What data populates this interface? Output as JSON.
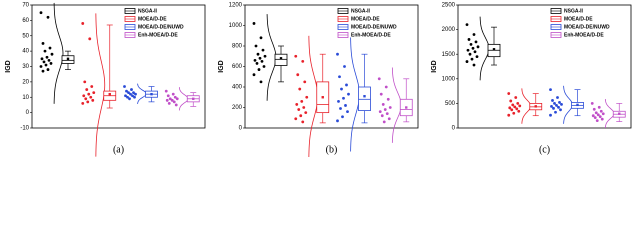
{
  "chart_data": [
    {
      "type": "box",
      "caption": "(a)",
      "ylabel": "IGD",
      "ylim": [
        -10,
        70
      ],
      "yticks": [
        -10,
        0,
        10,
        20,
        30,
        40,
        50,
        60,
        70
      ],
      "legend": "upper right",
      "series": [
        {
          "name": "NSGA-II",
          "color": "#000000",
          "box": {
            "whislo": 28,
            "q1": 32,
            "median": 34,
            "q3": 37,
            "whishi": 40,
            "mean": 35
          },
          "values": [
            65,
            62,
            45,
            42,
            40,
            38,
            36,
            35,
            34,
            33,
            32,
            31,
            30,
            28,
            27
          ]
        },
        {
          "name": "MOEA/D-DE",
          "color": "#e8212a",
          "box": {
            "whislo": 3,
            "q1": 8,
            "median": 11,
            "q3": 14,
            "whishi": 57,
            "mean": 12
          },
          "values": [
            58,
            48,
            20,
            17,
            15,
            13,
            12,
            11,
            10,
            9,
            8,
            7,
            6
          ]
        },
        {
          "name": "MOEA/D-DE/NUWD",
          "color": "#2a4bd7",
          "box": {
            "whislo": 7,
            "q1": 10,
            "median": 12,
            "q3": 14,
            "whishi": 17,
            "mean": 12
          },
          "values": [
            17,
            15,
            14,
            13,
            13,
            12,
            12,
            11,
            11,
            10,
            10,
            9
          ]
        },
        {
          "name": "Enh-MOEA/D-DE",
          "color": "#c04fc8",
          "box": {
            "whislo": 4,
            "q1": 7,
            "median": 9,
            "q3": 11,
            "whishi": 13,
            "mean": 9
          },
          "values": [
            14,
            12,
            11,
            10,
            9,
            9,
            8,
            8,
            7,
            6,
            5
          ]
        }
      ]
    },
    {
      "type": "box",
      "caption": "(b)",
      "ylabel": "IGD",
      "ylim": [
        0,
        1200
      ],
      "yticks": [
        0,
        200,
        400,
        600,
        800,
        1000,
        1200
      ],
      "legend": "upper right",
      "series": [
        {
          "name": "NSGA-II",
          "color": "#000000",
          "box": {
            "whislo": 450,
            "q1": 610,
            "median": 670,
            "q3": 720,
            "whishi": 800,
            "mean": 680
          },
          "values": [
            1020,
            880,
            800,
            760,
            720,
            700,
            680,
            660,
            650,
            630,
            600,
            570,
            520,
            450
          ]
        },
        {
          "name": "MOEA/D-DE",
          "color": "#e8212a",
          "box": {
            "whislo": 50,
            "q1": 150,
            "median": 230,
            "q3": 450,
            "whishi": 720,
            "mean": 300
          },
          "values": [
            700,
            650,
            520,
            450,
            380,
            300,
            260,
            230,
            200,
            180,
            150,
            120,
            90,
            60
          ]
        },
        {
          "name": "MOEA/D-DE/NUWD",
          "color": "#2a4bd7",
          "box": {
            "whislo": 50,
            "q1": 170,
            "median": 280,
            "q3": 400,
            "whishi": 720,
            "mean": 310
          },
          "values": [
            720,
            600,
            500,
            420,
            380,
            330,
            290,
            260,
            220,
            190,
            160,
            110,
            70
          ]
        },
        {
          "name": "Enh-MOEA/D-DE",
          "color": "#c04fc8",
          "box": {
            "whislo": 60,
            "q1": 120,
            "median": 180,
            "q3": 280,
            "whishi": 480,
            "mean": 200
          },
          "values": [
            480,
            400,
            330,
            280,
            230,
            200,
            180,
            160,
            140,
            120,
            90,
            60
          ]
        }
      ]
    },
    {
      "type": "box",
      "caption": "(c)",
      "ylabel": "IGD",
      "ylim": [
        0,
        2500
      ],
      "yticks": [
        0,
        500,
        1000,
        1500,
        2000,
        2500
      ],
      "legend": "upper right",
      "series": [
        {
          "name": "NSGA-II",
          "color": "#000000",
          "box": {
            "whislo": 1280,
            "q1": 1450,
            "median": 1580,
            "q3": 1700,
            "whishi": 2050,
            "mean": 1600
          },
          "values": [
            2100,
            1900,
            1800,
            1750,
            1700,
            1650,
            1620,
            1580,
            1550,
            1500,
            1450,
            1400,
            1350,
            1280
          ]
        },
        {
          "name": "MOEA/D-DE",
          "color": "#e8212a",
          "box": {
            "whislo": 250,
            "q1": 370,
            "median": 430,
            "q3": 500,
            "whishi": 700,
            "mean": 440
          },
          "values": [
            700,
            620,
            550,
            500,
            470,
            450,
            430,
            410,
            390,
            370,
            340,
            300,
            260
          ]
        },
        {
          "name": "MOEA/D-DE/NUWD",
          "color": "#2a4bd7",
          "box": {
            "whislo": 250,
            "q1": 400,
            "median": 460,
            "q3": 520,
            "whishi": 780,
            "mean": 470
          },
          "values": [
            780,
            620,
            560,
            520,
            500,
            480,
            460,
            440,
            420,
            400,
            370,
            320,
            260
          ]
        },
        {
          "name": "Enh-MOEA/D-DE",
          "color": "#c04fc8",
          "box": {
            "whislo": 130,
            "q1": 220,
            "median": 280,
            "q3": 340,
            "whishi": 500,
            "mean": 290
          },
          "values": [
            500,
            420,
            380,
            340,
            310,
            290,
            270,
            250,
            230,
            210,
            180,
            150
          ]
        }
      ]
    }
  ]
}
